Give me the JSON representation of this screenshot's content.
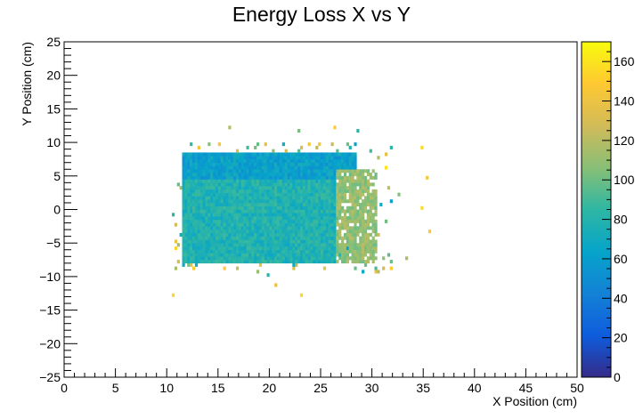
{
  "chart_data": {
    "type": "heatmap",
    "title": "Energy Loss X vs Y",
    "xlabel": "X Position (cm)",
    "ylabel": "Y Position (cm)",
    "xlim": [
      0,
      50
    ],
    "ylim": [
      -25,
      25
    ],
    "x_ticks": [
      "0",
      "5",
      "10",
      "15",
      "20",
      "25",
      "30",
      "35",
      "40",
      "45",
      "50"
    ],
    "y_ticks": [
      "−25",
      "−20",
      "−15",
      "−10",
      "−5",
      "0",
      "5",
      "10",
      "15",
      "20",
      "25"
    ],
    "colorbar": {
      "range": [
        0,
        170
      ],
      "ticks": [
        "0",
        "20",
        "40",
        "60",
        "80",
        "100",
        "120",
        "140",
        "160"
      ],
      "palette": [
        "#352a87",
        "#0f5cdd",
        "#1481d6",
        "#06a4ca",
        "#2eb7a4",
        "#87bf77",
        "#d1bb59",
        "#fec832",
        "#f9fb0e"
      ]
    },
    "regions": [
      {
        "x": [
          11.5,
          28.5
        ],
        "y": [
          4.5,
          8.5
        ],
        "level": 62,
        "note": "upper band"
      },
      {
        "x": [
          11.5,
          26.5
        ],
        "y": [
          -8.0,
          4.5
        ],
        "level": 78,
        "note": "main body"
      },
      {
        "x": [
          26.5,
          30.5
        ],
        "y": [
          -8.0,
          6.0
        ],
        "level": 110,
        "note": "right edge"
      }
    ]
  }
}
